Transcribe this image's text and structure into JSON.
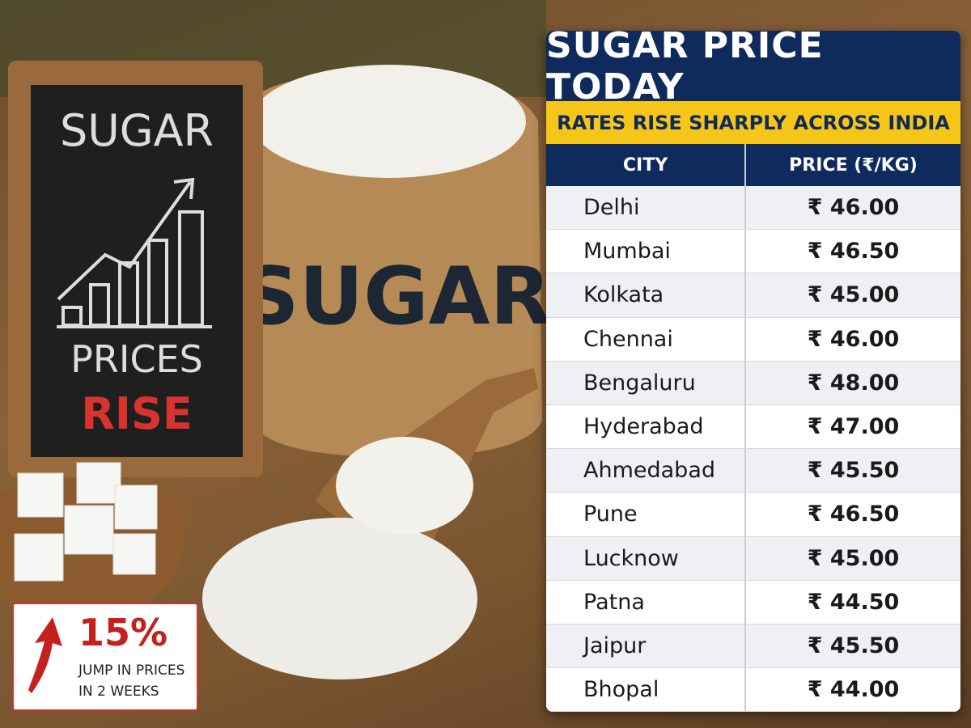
{
  "chalkboard": {
    "line1": "SUGAR",
    "line2": "PRICES",
    "line3": "RISE"
  },
  "sack": {
    "label": "SUGAR"
  },
  "badge": {
    "value": "15%",
    "line1": "JUMP IN PRICES",
    "line2": "IN 2 WEEKS"
  },
  "table": {
    "title": "SUGAR PRICE TODAY",
    "subtitle": "RATES RISE SHARPLY ACROSS INDIA",
    "headers": [
      "CITY",
      "PRICE (₹/KG)"
    ],
    "rows": [
      [
        "Delhi",
        "₹ 46.00"
      ],
      [
        "Mumbai",
        "₹ 46.50"
      ],
      [
        "Kolkata",
        "₹ 45.00"
      ],
      [
        "Chennai",
        "₹ 46.00"
      ],
      [
        "Bengaluru",
        "₹ 48.00"
      ],
      [
        "Hyderabad",
        "₹ 47.00"
      ],
      [
        "Ahmedabad",
        "₹ 45.50"
      ],
      [
        "Pune",
        "₹ 46.50"
      ],
      [
        "Lucknow",
        "₹ 45.00"
      ],
      [
        "Patna",
        "₹ 44.50"
      ],
      [
        "Jaipur",
        "₹ 45.50"
      ],
      [
        "Bhopal",
        "₹ 44.00"
      ]
    ]
  }
}
